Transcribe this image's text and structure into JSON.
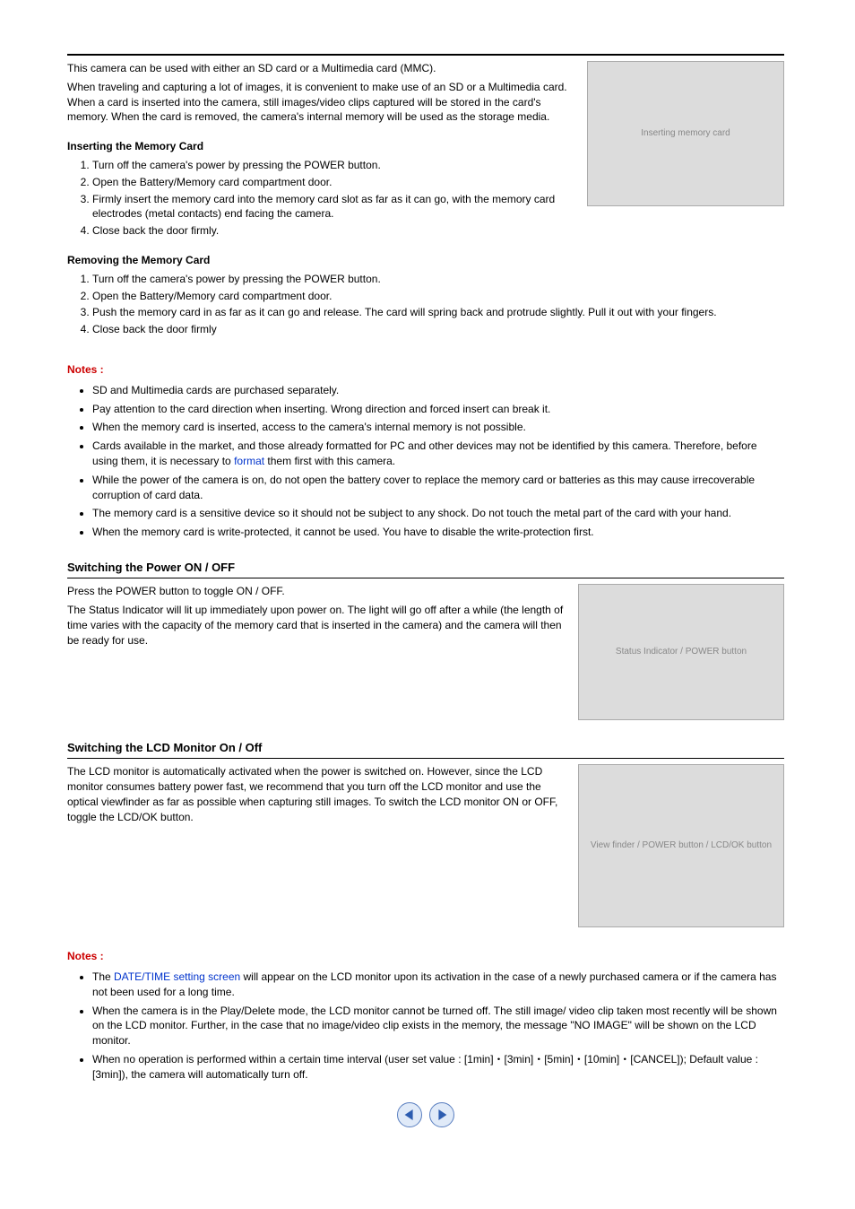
{
  "intro": {
    "p1": "This camera can be used with either an SD card or a Multimedia card (MMC).",
    "p2": "When traveling and capturing a lot of images, it is convenient to make use of an SD or a Multimedia card. When a card is inserted into the camera, still images/video clips captured will be stored in the card's memory. When the card is removed, the camera's internal memory will be used as the storage media."
  },
  "inserting": {
    "heading": "Inserting the Memory Card",
    "steps": [
      "Turn off the camera's power by pressing the POWER button.",
      "Open the Battery/Memory card compartment door.",
      "Firmly insert the memory card into the memory card slot as far as it can go, with the memory card electrodes (metal contacts) end facing the camera.",
      "Close back the door firmly."
    ]
  },
  "removing": {
    "heading": "Removing the Memory Card",
    "steps": [
      "Turn off the camera's power by pressing the POWER button.",
      "Open the Battery/Memory card compartment door.",
      "Push the memory card in as far as it can go and release. The card will spring back and protrude slightly. Pull it out with your fingers.",
      "Close back the door firmly"
    ]
  },
  "notes1": {
    "heading": "Notes :",
    "items": {
      "n0": "SD and Multimedia cards are purchased separately.",
      "n1": "Pay attention to the card direction when inserting. Wrong direction and forced insert can break it.",
      "n2": "When the memory card is inserted, access to the camera's internal memory is not possible.",
      "n3a": "Cards available in the market, and those already formatted for PC and other devices may not be identified by this camera. Therefore, before using them, it is necessary to ",
      "n3link": "format",
      "n3b": " them first with this camera.",
      "n4": "While the power of the camera is on, do not open the battery cover to replace the memory card or batteries as this may cause irrecoverable corruption of card data.",
      "n5": "The memory card is a sensitive device so it should not be subject to any shock. Do not touch the metal part of the card with your hand.",
      "n6": "When the memory card is write-protected, it cannot be used. You have to disable the write-protection first."
    }
  },
  "power": {
    "heading": "Switching the Power ON / OFF",
    "p1": "Press the POWER button to toggle ON / OFF.",
    "p2": "The Status Indicator will lit up immediately upon power on. The light will go off after a while (the length of time varies with the capacity of the memory card that is inserted in the camera) and the camera will then be ready for use.",
    "labels": {
      "status": "Status Indicator",
      "power": "POWER button"
    }
  },
  "lcd": {
    "heading": "Switching the LCD Monitor On / Off",
    "p1": "The LCD monitor is automatically activated when the power is switched on. However, since the LCD monitor consumes battery power fast, we recommend that you turn off the LCD monitor and use the optical viewfinder as far as possible when capturing still images. To switch the LCD monitor ON or OFF, toggle the LCD/OK button.",
    "labels": {
      "viewfinder": "View finder",
      "power": "POWER button",
      "lcdok": "LCD/OK button"
    }
  },
  "notes2": {
    "heading": "Notes :",
    "items": {
      "n0a": "The ",
      "n0link": "DATE/TIME setting screen",
      "n0b": " will appear on the LCD monitor upon its activation in the case of a newly purchased camera or if the camera has not been used for a long time.",
      "n1": "When the camera is in the Play/Delete mode, the LCD monitor cannot be turned off. The still image/ video clip taken most recently will be shown on the LCD monitor. Further, in the case that no image/video clip exists in the memory, the message \"NO IMAGE\" will be shown on the LCD monitor.",
      "n2": "When no operation is performed within a certain time interval (user set value : [1min]・[3min]・[5min]・[10min]・[CANCEL]); Default value : [3min]), the camera will automatically turn off."
    }
  },
  "figures": {
    "f1_alt": "Inserting memory card",
    "f2_alt": "Status Indicator / POWER button",
    "f3_alt": "View finder / POWER button / LCD/OK button"
  }
}
